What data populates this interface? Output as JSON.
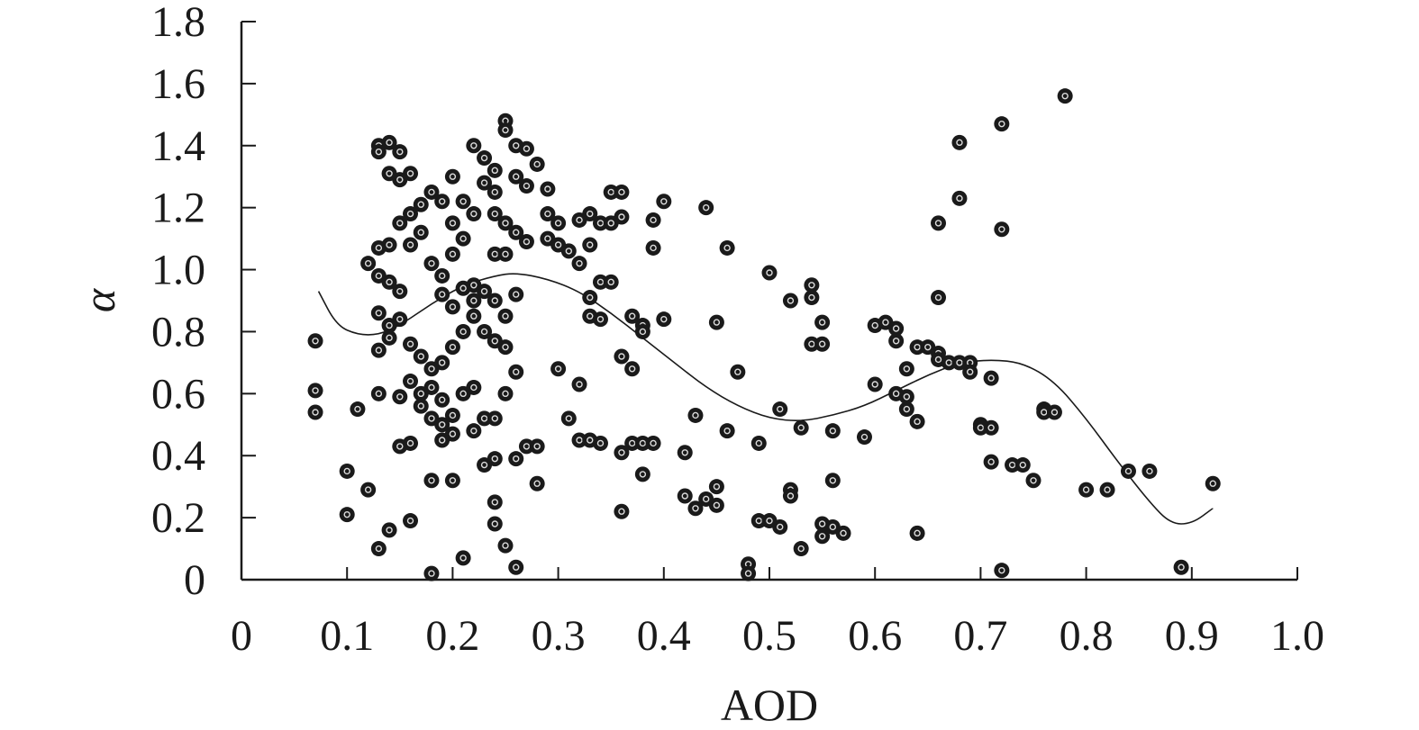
{
  "chart_data": {
    "type": "scatter",
    "title": "",
    "xlabel": "AOD",
    "ylabel": "α",
    "xlim": [
      0,
      1.0
    ],
    "ylim": [
      0,
      1.8
    ],
    "grid": false,
    "x_ticks": [
      "0",
      "0.1",
      "0.2",
      "0.3",
      "0.4",
      "0.5",
      "0.6",
      "0.7",
      "0.8",
      "0.9",
      "1.0"
    ],
    "y_ticks": [
      "0",
      "0.2",
      "0.4",
      "0.6",
      "0.8",
      "1.0",
      "1.2",
      "1.4",
      "1.6",
      "1.8"
    ],
    "marker_color": "#1a1a1a",
    "points": [
      [
        0.07,
        0.77
      ],
      [
        0.07,
        0.61
      ],
      [
        0.07,
        0.54
      ],
      [
        0.1,
        0.35
      ],
      [
        0.1,
        0.21
      ],
      [
        0.11,
        0.55
      ],
      [
        0.12,
        0.29
      ],
      [
        0.13,
        0.6
      ],
      [
        0.13,
        0.1
      ],
      [
        0.14,
        0.16
      ],
      [
        0.16,
        0.19
      ],
      [
        0.15,
        0.43
      ],
      [
        0.16,
        0.44
      ],
      [
        0.18,
        0.02
      ],
      [
        0.18,
        0.32
      ],
      [
        0.2,
        0.32
      ],
      [
        0.21,
        0.07
      ],
      [
        0.13,
        1.4
      ],
      [
        0.14,
        1.41
      ],
      [
        0.13,
        1.38
      ],
      [
        0.15,
        1.38
      ],
      [
        0.14,
        1.31
      ],
      [
        0.16,
        1.31
      ],
      [
        0.15,
        1.29
      ],
      [
        0.13,
        1.07
      ],
      [
        0.14,
        1.08
      ],
      [
        0.12,
        1.02
      ],
      [
        0.13,
        0.98
      ],
      [
        0.14,
        0.96
      ],
      [
        0.15,
        0.93
      ],
      [
        0.13,
        0.86
      ],
      [
        0.14,
        0.82
      ],
      [
        0.15,
        0.84
      ],
      [
        0.14,
        0.78
      ],
      [
        0.13,
        0.74
      ],
      [
        0.15,
        1.15
      ],
      [
        0.16,
        1.18
      ],
      [
        0.17,
        1.21
      ],
      [
        0.18,
        1.25
      ],
      [
        0.19,
        1.22
      ],
      [
        0.17,
        1.12
      ],
      [
        0.16,
        1.08
      ],
      [
        0.18,
        1.02
      ],
      [
        0.19,
        0.98
      ],
      [
        0.2,
        1.05
      ],
      [
        0.21,
        1.1
      ],
      [
        0.2,
        1.15
      ],
      [
        0.21,
        1.22
      ],
      [
        0.2,
        1.3
      ],
      [
        0.22,
        1.18
      ],
      [
        0.16,
        0.76
      ],
      [
        0.17,
        0.72
      ],
      [
        0.18,
        0.68
      ],
      [
        0.16,
        0.64
      ],
      [
        0.17,
        0.6
      ],
      [
        0.15,
        0.59
      ],
      [
        0.18,
        0.62
      ],
      [
        0.19,
        0.58
      ],
      [
        0.19,
        0.7
      ],
      [
        0.2,
        0.75
      ],
      [
        0.21,
        0.8
      ],
      [
        0.22,
        0.85
      ],
      [
        0.2,
        0.88
      ],
      [
        0.19,
        0.92
      ],
      [
        0.21,
        0.94
      ],
      [
        0.22,
        0.9
      ],
      [
        0.17,
        0.56
      ],
      [
        0.18,
        0.52
      ],
      [
        0.19,
        0.5
      ],
      [
        0.2,
        0.53
      ],
      [
        0.2,
        0.47
      ],
      [
        0.19,
        0.45
      ],
      [
        0.22,
        0.62
      ],
      [
        0.21,
        0.6
      ],
      [
        0.22,
        0.48
      ],
      [
        0.23,
        0.52
      ],
      [
        0.24,
        0.39
      ],
      [
        0.23,
        0.37
      ],
      [
        0.24,
        0.25
      ],
      [
        0.24,
        0.18
      ],
      [
        0.25,
        0.11
      ],
      [
        0.26,
        0.04
      ],
      [
        0.22,
        1.4
      ],
      [
        0.23,
        1.36
      ],
      [
        0.24,
        1.32
      ],
      [
        0.23,
        1.28
      ],
      [
        0.24,
        1.25
      ],
      [
        0.25,
        1.48
      ],
      [
        0.25,
        1.45
      ],
      [
        0.26,
        1.4
      ],
      [
        0.27,
        1.39
      ],
      [
        0.26,
        1.3
      ],
      [
        0.27,
        1.27
      ],
      [
        0.24,
        1.18
      ],
      [
        0.25,
        1.15
      ],
      [
        0.26,
        1.12
      ],
      [
        0.27,
        1.09
      ],
      [
        0.24,
        1.05
      ],
      [
        0.25,
        1.05
      ],
      [
        0.22,
        0.95
      ],
      [
        0.23,
        0.93
      ],
      [
        0.24,
        0.9
      ],
      [
        0.25,
        0.85
      ],
      [
        0.26,
        0.92
      ],
      [
        0.23,
        0.8
      ],
      [
        0.24,
        0.77
      ],
      [
        0.25,
        0.75
      ],
      [
        0.26,
        0.67
      ],
      [
        0.25,
        0.6
      ],
      [
        0.24,
        0.52
      ],
      [
        0.26,
        0.39
      ],
      [
        0.27,
        0.43
      ],
      [
        0.28,
        0.43
      ],
      [
        0.28,
        0.31
      ],
      [
        0.28,
        1.34
      ],
      [
        0.29,
        1.26
      ],
      [
        0.29,
        1.18
      ],
      [
        0.3,
        1.15
      ],
      [
        0.29,
        1.1
      ],
      [
        0.3,
        1.08
      ],
      [
        0.31,
        1.06
      ],
      [
        0.32,
        1.02
      ],
      [
        0.32,
        1.16
      ],
      [
        0.33,
        1.18
      ],
      [
        0.34,
        1.15
      ],
      [
        0.33,
        1.08
      ],
      [
        0.34,
        0.96
      ],
      [
        0.33,
        0.91
      ],
      [
        0.33,
        0.85
      ],
      [
        0.34,
        0.84
      ],
      [
        0.35,
        1.15
      ],
      [
        0.35,
        1.25
      ],
      [
        0.36,
        1.25
      ],
      [
        0.36,
        1.17
      ],
      [
        0.35,
        0.96
      ],
      [
        0.37,
        0.85
      ],
      [
        0.38,
        0.82
      ],
      [
        0.38,
        0.8
      ],
      [
        0.39,
        1.07
      ],
      [
        0.39,
        1.16
      ],
      [
        0.4,
        1.22
      ],
      [
        0.4,
        0.84
      ],
      [
        0.36,
        0.72
      ],
      [
        0.37,
        0.68
      ],
      [
        0.3,
        0.68
      ],
      [
        0.31,
        0.52
      ],
      [
        0.32,
        0.45
      ],
      [
        0.32,
        0.63
      ],
      [
        0.33,
        0.45
      ],
      [
        0.34,
        0.44
      ],
      [
        0.36,
        0.41
      ],
      [
        0.37,
        0.44
      ],
      [
        0.38,
        0.44
      ],
      [
        0.38,
        0.34
      ],
      [
        0.39,
        0.44
      ],
      [
        0.36,
        0.22
      ],
      [
        0.42,
        0.41
      ],
      [
        0.42,
        0.27
      ],
      [
        0.43,
        0.53
      ],
      [
        0.43,
        0.23
      ],
      [
        0.44,
        0.26
      ],
      [
        0.45,
        0.3
      ],
      [
        0.45,
        0.24
      ],
      [
        0.44,
        1.2
      ],
      [
        0.45,
        0.83
      ],
      [
        0.46,
        1.07
      ],
      [
        0.46,
        0.48
      ],
      [
        0.47,
        0.67
      ],
      [
        0.48,
        0.05
      ],
      [
        0.48,
        0.02
      ],
      [
        0.49,
        0.19
      ],
      [
        0.49,
        0.44
      ],
      [
        0.5,
        0.19
      ],
      [
        0.5,
        0.99
      ],
      [
        0.51,
        0.55
      ],
      [
        0.51,
        0.17
      ],
      [
        0.52,
        0.9
      ],
      [
        0.52,
        0.29
      ],
      [
        0.52,
        0.27
      ],
      [
        0.53,
        0.1
      ],
      [
        0.53,
        0.49
      ],
      [
        0.54,
        0.95
      ],
      [
        0.54,
        0.91
      ],
      [
        0.55,
        0.83
      ],
      [
        0.54,
        0.76
      ],
      [
        0.55,
        0.76
      ],
      [
        0.55,
        0.18
      ],
      [
        0.55,
        0.14
      ],
      [
        0.56,
        0.17
      ],
      [
        0.56,
        0.48
      ],
      [
        0.56,
        0.32
      ],
      [
        0.57,
        0.15
      ],
      [
        0.59,
        0.46
      ],
      [
        0.6,
        0.63
      ],
      [
        0.6,
        0.82
      ],
      [
        0.61,
        0.83
      ],
      [
        0.62,
        0.81
      ],
      [
        0.62,
        0.6
      ],
      [
        0.62,
        0.77
      ],
      [
        0.63,
        0.68
      ],
      [
        0.63,
        0.59
      ],
      [
        0.63,
        0.55
      ],
      [
        0.64,
        0.75
      ],
      [
        0.64,
        0.51
      ],
      [
        0.64,
        0.15
      ],
      [
        0.65,
        0.75
      ],
      [
        0.66,
        0.73
      ],
      [
        0.66,
        0.71
      ],
      [
        0.66,
        0.91
      ],
      [
        0.66,
        1.15
      ],
      [
        0.67,
        0.7
      ],
      [
        0.68,
        1.41
      ],
      [
        0.68,
        1.23
      ],
      [
        0.68,
        0.7
      ],
      [
        0.69,
        0.7
      ],
      [
        0.69,
        0.67
      ],
      [
        0.7,
        0.5
      ],
      [
        0.7,
        0.49
      ],
      [
        0.71,
        0.65
      ],
      [
        0.71,
        0.49
      ],
      [
        0.71,
        0.38
      ],
      [
        0.72,
        1.47
      ],
      [
        0.72,
        0.03
      ],
      [
        0.72,
        1.13
      ],
      [
        0.73,
        0.37
      ],
      [
        0.74,
        0.37
      ],
      [
        0.75,
        0.32
      ],
      [
        0.76,
        0.55
      ],
      [
        0.76,
        0.54
      ],
      [
        0.77,
        0.54
      ],
      [
        0.78,
        1.56
      ],
      [
        0.8,
        0.29
      ],
      [
        0.82,
        0.29
      ],
      [
        0.84,
        0.35
      ],
      [
        0.86,
        0.35
      ],
      [
        0.89,
        0.04
      ],
      [
        0.92,
        0.31
      ]
    ],
    "trendline": {
      "style": "thin solid line",
      "points": [
        [
          0.073,
          0.93
        ],
        [
          0.09,
          0.82
        ],
        [
          0.11,
          0.79
        ],
        [
          0.13,
          0.79
        ],
        [
          0.15,
          0.82
        ],
        [
          0.18,
          0.89
        ],
        [
          0.21,
          0.95
        ],
        [
          0.24,
          0.98
        ],
        [
          0.26,
          0.99
        ],
        [
          0.29,
          0.97
        ],
        [
          0.32,
          0.93
        ],
        [
          0.35,
          0.86
        ],
        [
          0.38,
          0.78
        ],
        [
          0.41,
          0.7
        ],
        [
          0.44,
          0.62
        ],
        [
          0.47,
          0.56
        ],
        [
          0.5,
          0.52
        ],
        [
          0.53,
          0.51
        ],
        [
          0.56,
          0.53
        ],
        [
          0.59,
          0.56
        ],
        [
          0.62,
          0.61
        ],
        [
          0.65,
          0.66
        ],
        [
          0.68,
          0.7
        ],
        [
          0.71,
          0.71
        ],
        [
          0.74,
          0.7
        ],
        [
          0.77,
          0.64
        ],
        [
          0.8,
          0.52
        ],
        [
          0.83,
          0.38
        ],
        [
          0.86,
          0.25
        ],
        [
          0.88,
          0.18
        ],
        [
          0.9,
          0.18
        ],
        [
          0.92,
          0.23
        ]
      ]
    }
  }
}
